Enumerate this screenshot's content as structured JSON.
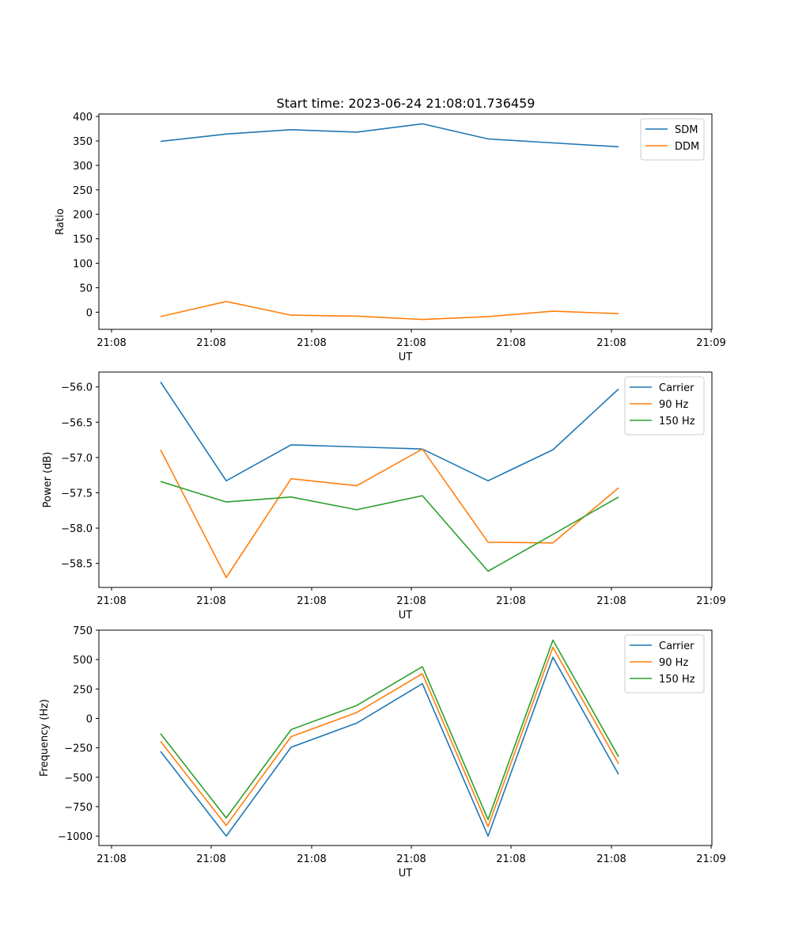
{
  "title": "Start time: 2023-06-24 21:08:01.736459",
  "colors": {
    "blue": "#1f77b4",
    "orange": "#ff7f0e",
    "green": "#2ca02c"
  },
  "chart_data": [
    {
      "type": "line",
      "xlabel": "UT",
      "ylabel": "Ratio",
      "x_tick_labels": [
        "21:08",
        "21:08",
        "21:08",
        "21:08",
        "21:08",
        "21:08",
        "21:09"
      ],
      "y_ticks": [
        0,
        50,
        100,
        150,
        200,
        250,
        300,
        350,
        400
      ],
      "y_tick_labels": [
        "0",
        "50",
        "100",
        "150",
        "200",
        "250",
        "300",
        "350",
        "400"
      ],
      "ylim": [
        -35,
        405
      ],
      "legend": "top-right",
      "series": [
        {
          "name": "SDM",
          "color": "#1f77b4",
          "values": [
            349,
            364,
            373,
            368,
            385,
            354,
            346,
            338
          ]
        },
        {
          "name": "DDM",
          "color": "#ff7f0e",
          "values": [
            -9,
            22,
            -6,
            -8,
            -15,
            -9,
            2,
            -3
          ]
        }
      ]
    },
    {
      "type": "line",
      "xlabel": "UT",
      "ylabel": "Power (dB)",
      "x_tick_labels": [
        "21:08",
        "21:08",
        "21:08",
        "21:08",
        "21:08",
        "21:08",
        "21:09"
      ],
      "y_ticks": [
        -56.0,
        -56.5,
        -57.0,
        -57.5,
        -58.0,
        -58.5
      ],
      "y_tick_labels": [
        "−56.0",
        "−56.5",
        "−57.0",
        "−57.5",
        "−58.0",
        "−58.5"
      ],
      "ylim": [
        -58.84,
        -55.79
      ],
      "legend": "top-right",
      "series": [
        {
          "name": "Carrier",
          "color": "#1f77b4",
          "values": [
            -55.93,
            -57.33,
            -56.82,
            -56.85,
            -56.88,
            -57.33,
            -56.89,
            -56.03
          ]
        },
        {
          "name": "90 Hz",
          "color": "#ff7f0e",
          "values": [
            -56.89,
            -58.7,
            -57.3,
            -57.4,
            -56.88,
            -58.2,
            -58.21,
            -57.43
          ]
        },
        {
          "name": "150 Hz",
          "color": "#2ca02c",
          "values": [
            -57.34,
            -57.63,
            -57.56,
            -57.74,
            -57.54,
            -58.61,
            -58.09,
            -57.56
          ]
        }
      ]
    },
    {
      "type": "line",
      "xlabel": "UT",
      "ylabel": "Frequency (Hz)",
      "x_tick_labels": [
        "21:08",
        "21:08",
        "21:08",
        "21:08",
        "21:08",
        "21:08",
        "21:09"
      ],
      "y_ticks": [
        750,
        500,
        250,
        0,
        -250,
        -500,
        -750,
        -1000
      ],
      "y_tick_labels": [
        "750",
        "500",
        "250",
        "0",
        "−250",
        "−500",
        "−750",
        "−1000"
      ],
      "ylim": [
        -1080,
        750
      ],
      "legend": "top-right",
      "series": [
        {
          "name": "Carrier",
          "color": "#1f77b4",
          "values": [
            -280,
            -1000,
            -245,
            -40,
            295,
            -1000,
            520,
            -475
          ]
        },
        {
          "name": "90 Hz",
          "color": "#ff7f0e",
          "values": [
            -195,
            -910,
            -155,
            50,
            380,
            -920,
            605,
            -385
          ]
        },
        {
          "name": "150 Hz",
          "color": "#2ca02c",
          "values": [
            -130,
            -845,
            -95,
            110,
            440,
            -860,
            665,
            -325
          ]
        }
      ]
    }
  ]
}
